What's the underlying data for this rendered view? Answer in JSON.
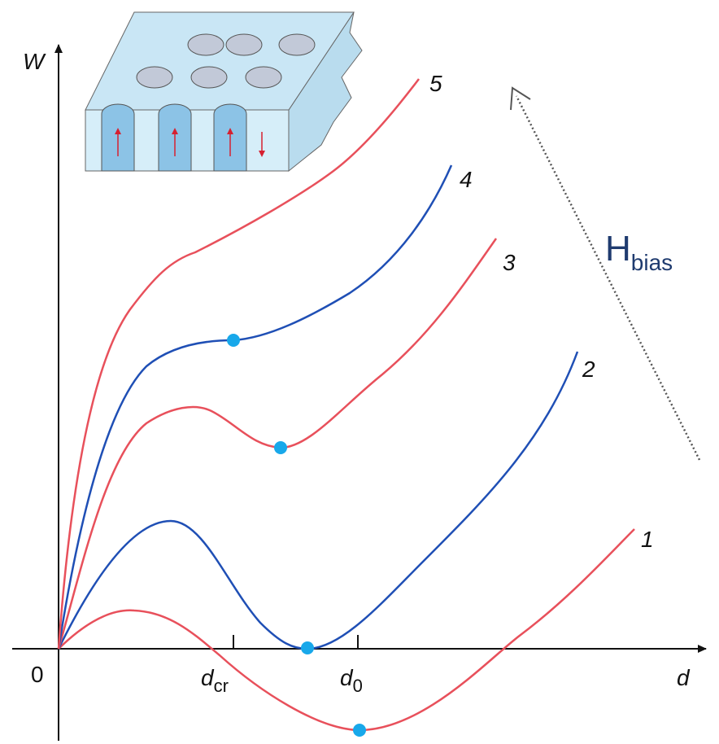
{
  "axes": {
    "y_label": "W",
    "x_label": "d",
    "origin": "0"
  },
  "ticks": [
    {
      "main": "d",
      "sub": "cr"
    },
    {
      "main": "d",
      "sub": "0"
    }
  ],
  "curves": [
    {
      "label": "1"
    },
    {
      "label": "2"
    },
    {
      "label": "3"
    },
    {
      "label": "4"
    },
    {
      "label": "5"
    }
  ],
  "field": {
    "main": "H",
    "sub": "bias"
  }
}
